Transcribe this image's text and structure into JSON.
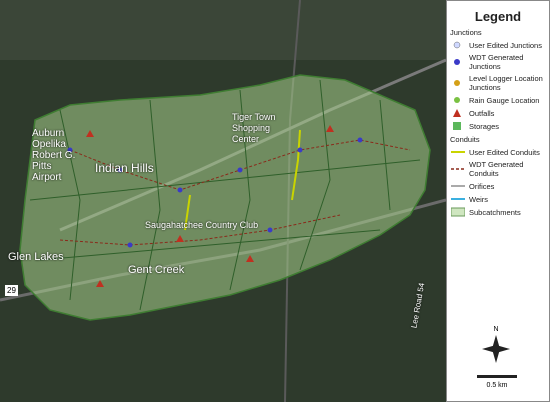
{
  "legend": {
    "title": "Legend",
    "sections": [
      {
        "header": "Junctions",
        "items": [
          "User Edited Junctions",
          "WDT Generated Junctions",
          "Level Logger Location Junctions",
          "Rain Gauge Location"
        ]
      },
      {
        "header": null,
        "items": [
          "Outfalls",
          "Storages"
        ]
      },
      {
        "header": "Conduits",
        "items": [
          "User Edited Conduits",
          "WDT Generated Conduits"
        ]
      },
      {
        "header": null,
        "items": [
          "Orifices",
          "Weirs",
          "Subcatchments"
        ]
      }
    ]
  },
  "north_arrow": "N",
  "scale_bar": "0.5 km",
  "map_labels": [
    "Auburn Opelika Robert G. Pitts Airport",
    "Indian Hills",
    "Tiger Town Shopping Center",
    "Saugahatchee Country Club",
    "Gent Creek",
    "Glen Lakes",
    "Lee Road 54",
    "29"
  ]
}
